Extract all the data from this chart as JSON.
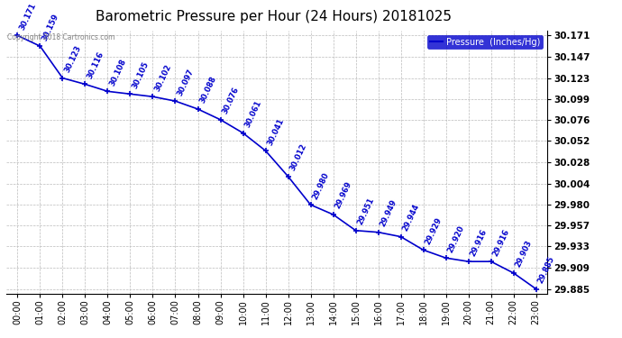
{
  "title": "Barometric Pressure per Hour (24 Hours) 20181025",
  "copyright": "Copyright 2018 Cartronics.com",
  "legend_label": "Pressure  (Inches/Hg)",
  "hours": [
    0,
    1,
    2,
    3,
    4,
    5,
    6,
    7,
    8,
    9,
    10,
    11,
    12,
    13,
    14,
    15,
    16,
    17,
    18,
    19,
    20,
    21,
    22,
    23
  ],
  "pressure": [
    30.171,
    30.159,
    30.123,
    30.116,
    30.108,
    30.105,
    30.102,
    30.097,
    30.088,
    30.076,
    30.061,
    30.041,
    30.012,
    29.98,
    29.969,
    29.951,
    29.949,
    29.944,
    29.929,
    29.92,
    29.916,
    29.916,
    29.903,
    29.885
  ],
  "ylim_min": 29.885,
  "ylim_max": 30.171,
  "line_color": "#0000cc",
  "marker_color": "#0000cc",
  "label_color": "#0000cc",
  "background_color": "#ffffff",
  "grid_color": "#bbbbbb",
  "title_fontsize": 11,
  "ytick_labels": [
    "29.885",
    "29.909",
    "29.933",
    "29.957",
    "29.980",
    "30.004",
    "30.028",
    "30.052",
    "30.076",
    "30.099",
    "30.123",
    "30.147",
    "30.171"
  ],
  "ytick_values": [
    29.885,
    29.909,
    29.933,
    29.957,
    29.98,
    30.004,
    30.028,
    30.052,
    30.076,
    30.099,
    30.123,
    30.147,
    30.171
  ]
}
